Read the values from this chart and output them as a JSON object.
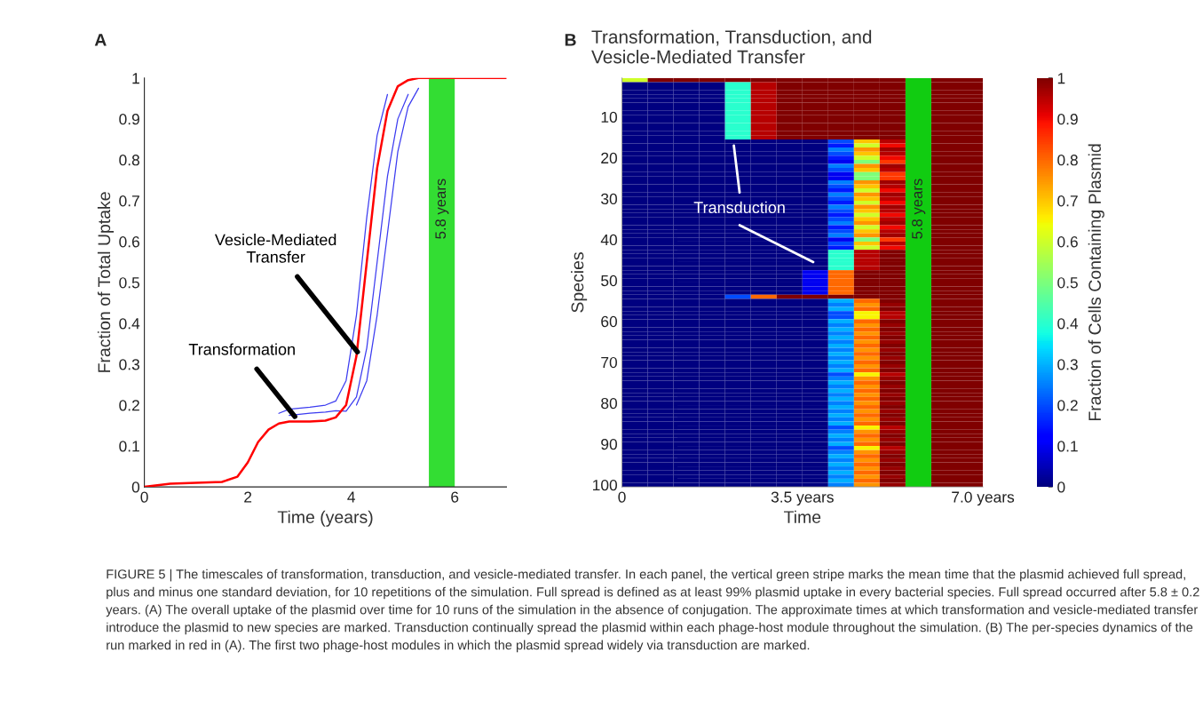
{
  "chart_data": [
    {
      "type": "line",
      "xlabel": "Time (years)",
      "ylabel": "Fraction of Total Uptake",
      "xlim": [
        0,
        7
      ],
      "xticks": [
        0,
        2,
        4,
        6
      ],
      "ylim": [
        0,
        1
      ],
      "yticks": [
        0,
        0.1,
        0.2,
        0.3,
        0.4,
        0.5,
        0.6,
        0.7,
        0.8,
        0.9,
        1
      ],
      "grid": false,
      "legend": false,
      "x": [
        0,
        0.5,
        1,
        1.5,
        1.8,
        2,
        2.2,
        2.4,
        2.6,
        2.8,
        3.2,
        3.5,
        3.7,
        3.9,
        4.1,
        4.3,
        4.5,
        4.7,
        4.9,
        5.1,
        5.3,
        5.5,
        7
      ],
      "series": [
        {
          "color": "#3c3cf0",
          "values": [
            null,
            null,
            null,
            null,
            null,
            null,
            null,
            null,
            0.18,
            0.19,
            0.195,
            0.2,
            0.21,
            0.26,
            0.42,
            0.66,
            0.86,
            0.96,
            null,
            null,
            null,
            null,
            null
          ]
        },
        {
          "color": "#3c3cf0",
          "values": [
            null,
            null,
            null,
            null,
            null,
            null,
            null,
            null,
            null,
            0.175,
            0.18,
            0.183,
            0.186,
            0.185,
            0.22,
            0.34,
            0.55,
            0.76,
            0.9,
            0.96,
            null,
            null,
            null
          ]
        },
        {
          "color": "#3c3cf0",
          "values": [
            null,
            null,
            null,
            null,
            null,
            null,
            null,
            null,
            null,
            null,
            null,
            null,
            null,
            null,
            0.2,
            0.26,
            0.42,
            0.62,
            0.82,
            0.93,
            0.975,
            null,
            null
          ]
        },
        {
          "color": "#ff0000",
          "values": [
            0,
            0.008,
            0.01,
            0.012,
            0.025,
            0.06,
            0.11,
            0.14,
            0.155,
            0.16,
            0.16,
            0.162,
            0.17,
            0.2,
            0.32,
            0.55,
            0.78,
            0.92,
            0.98,
            0.995,
            1,
            1,
            1
          ]
        }
      ],
      "bands": [
        {
          "axis": "x",
          "from": 5.5,
          "to": 6.0,
          "label": "5.8 years",
          "color": "#33dd33"
        }
      ],
      "annotations": [
        "A",
        {
          "text": "Transformation",
          "x": 2.91,
          "y": 0.172
        },
        {
          "text": "Vesicle-Mediated\nTransfer",
          "x": 4.12,
          "y": 0.33
        }
      ]
    },
    {
      "type": "heatmap",
      "title": "Transformation, Transduction, and\nVesicle-Mediated Transfer",
      "xlabel": "Time",
      "ylabel": "Species",
      "clabel": "Fraction of Cells Containing Plasmid",
      "xlim": [
        0,
        7
      ],
      "xticks": [
        0,
        {
          "value": 3.5,
          "label": "3.5 years"
        },
        {
          "value": 7.0,
          "label": "7.0 years"
        }
      ],
      "ylim": [
        100.5,
        0.5
      ],
      "yticks": [
        10,
        20,
        30,
        40,
        50,
        60,
        70,
        80,
        90,
        100
      ],
      "clim": [
        0,
        1
      ],
      "cticks": [
        0,
        0.1,
        0.2,
        0.3,
        0.4,
        0.5,
        0.6,
        0.7,
        0.8,
        0.9,
        1
      ],
      "cells": [
        [
          0.6,
          1,
          1,
          1,
          1,
          1,
          1,
          1,
          1,
          1,
          1,
          null,
          1,
          1
        ],
        [
          0,
          0,
          0,
          0,
          0.4,
          0.95,
          1,
          1,
          1,
          1,
          1,
          null,
          1,
          1
        ],
        [
          0,
          0,
          0,
          0,
          0.4,
          0.95,
          1,
          1,
          1,
          1,
          1,
          null,
          1,
          1
        ],
        [
          0,
          0,
          0,
          0,
          0.4,
          0.95,
          1,
          1,
          1,
          1,
          1,
          null,
          1,
          1
        ],
        [
          0,
          0,
          0,
          0,
          0.4,
          0.95,
          1,
          1,
          1,
          1,
          1,
          null,
          1,
          1
        ],
        [
          0,
          0,
          0,
          0,
          0.4,
          0.95,
          1,
          1,
          1,
          1,
          1,
          null,
          1,
          1
        ],
        [
          0,
          0,
          0,
          0,
          0.4,
          0.95,
          1,
          1,
          1,
          1,
          1,
          null,
          1,
          1
        ],
        [
          0,
          0,
          0,
          0,
          0.4,
          0.95,
          1,
          1,
          1,
          1,
          1,
          null,
          1,
          1
        ],
        [
          0,
          0,
          0,
          0,
          0.4,
          0.95,
          1,
          1,
          1,
          1,
          1,
          null,
          1,
          1
        ],
        [
          0,
          0,
          0,
          0,
          0.4,
          0.95,
          1,
          1,
          1,
          1,
          1,
          null,
          1,
          1
        ],
        [
          0,
          0,
          0,
          0,
          0.4,
          0.95,
          1,
          1,
          1,
          1,
          1,
          null,
          1,
          1
        ],
        [
          0,
          0,
          0,
          0,
          0.4,
          0.95,
          1,
          1,
          1,
          1,
          1,
          null,
          1,
          1
        ],
        [
          0,
          0,
          0,
          0,
          0.4,
          0.95,
          1,
          1,
          1,
          1,
          1,
          null,
          1,
          1
        ],
        [
          0,
          0,
          0,
          0,
          0.4,
          0.95,
          1,
          1,
          1,
          1,
          1,
          null,
          1,
          1
        ],
        [
          0,
          0,
          0,
          0,
          0.4,
          0.95,
          1,
          1,
          1,
          1,
          1,
          null,
          1,
          1
        ],
        [
          0,
          0,
          0,
          0,
          0,
          0,
          0,
          0,
          0.2,
          0.7,
          0.95,
          null,
          1,
          1
        ],
        [
          0,
          0,
          0,
          0,
          0,
          0,
          0,
          0,
          0.15,
          0.6,
          0.9,
          null,
          1,
          1
        ],
        [
          0,
          0,
          0,
          0,
          0,
          0,
          0,
          0,
          0.25,
          0.75,
          0.97,
          null,
          1,
          1
        ],
        [
          0,
          0,
          0,
          0,
          0,
          0,
          0,
          0,
          0.2,
          0.7,
          0.95,
          null,
          1,
          1
        ],
        [
          0,
          0,
          0,
          0,
          0,
          0,
          0,
          0,
          0.15,
          0.6,
          0.9,
          null,
          1,
          1
        ],
        [
          0,
          0,
          0,
          0,
          0,
          0,
          0,
          0,
          0.1,
          0.5,
          0.85,
          null,
          1,
          1
        ],
        [
          0,
          0,
          0,
          0,
          0,
          0,
          0,
          0,
          0.25,
          0.75,
          0.97,
          null,
          1,
          1
        ],
        [
          0,
          0,
          0,
          0,
          0,
          0,
          0,
          0,
          0.2,
          0.7,
          0.95,
          null,
          1,
          1
        ],
        [
          0,
          0,
          0,
          0,
          0,
          0,
          0,
          0,
          0.1,
          0.5,
          0.85,
          null,
          1,
          1
        ],
        [
          0,
          0,
          0,
          0,
          0,
          0,
          0,
          0,
          0.1,
          0.5,
          0.85,
          null,
          1,
          1
        ],
        [
          0,
          0,
          0,
          0,
          0,
          0,
          0,
          0,
          0.25,
          0.75,
          0.97,
          null,
          1,
          1
        ],
        [
          0,
          0,
          0,
          0,
          0,
          0,
          0,
          0,
          0.2,
          0.7,
          0.95,
          null,
          1,
          1
        ],
        [
          0,
          0,
          0,
          0,
          0,
          0,
          0,
          0,
          0.15,
          0.6,
          0.9,
          null,
          1,
          1
        ],
        [
          0,
          0,
          0,
          0,
          0,
          0,
          0,
          0,
          0.25,
          0.75,
          0.97,
          null,
          1,
          1
        ],
        [
          0,
          0,
          0,
          0,
          0,
          0,
          0,
          0,
          0.2,
          0.7,
          0.95,
          null,
          1,
          1
        ],
        [
          0,
          0,
          0,
          0,
          0,
          0,
          0,
          0,
          0.15,
          0.6,
          0.9,
          null,
          1,
          1
        ],
        [
          0,
          0,
          0,
          0,
          0,
          0,
          0,
          0,
          0.25,
          0.75,
          0.97,
          null,
          1,
          1
        ],
        [
          0,
          0,
          0,
          0,
          0,
          0,
          0,
          0,
          0.2,
          0.7,
          0.95,
          null,
          1,
          1
        ],
        [
          0,
          0,
          0,
          0,
          0,
          0,
          0,
          0,
          0.15,
          0.6,
          0.9,
          null,
          1,
          1
        ],
        [
          0,
          0,
          0,
          0,
          0,
          0,
          0,
          0,
          0.2,
          0.7,
          0.95,
          null,
          1,
          1
        ],
        [
          0,
          0,
          0,
          0,
          0,
          0,
          0,
          0,
          0.25,
          0.75,
          0.97,
          null,
          1,
          1
        ],
        [
          0,
          0,
          0,
          0,
          0,
          0,
          0,
          0,
          0.15,
          0.6,
          0.9,
          null,
          1,
          1
        ],
        [
          0,
          0,
          0,
          0,
          0,
          0,
          0,
          0,
          0.2,
          0.7,
          0.95,
          null,
          1,
          1
        ],
        [
          0,
          0,
          0,
          0,
          0,
          0,
          0,
          0,
          0.25,
          0.75,
          0.97,
          null,
          1,
          1
        ],
        [
          0,
          0,
          0,
          0,
          0,
          0,
          0,
          0,
          0.1,
          0.5,
          0.85,
          null,
          1,
          1
        ],
        [
          0,
          0,
          0,
          0,
          0,
          0,
          0,
          0,
          0.2,
          0.7,
          0.95,
          null,
          1,
          1
        ],
        [
          0,
          0,
          0,
          0,
          0,
          0,
          0,
          0,
          0.15,
          0.6,
          0.9,
          null,
          1,
          1
        ],
        [
          0,
          0,
          0,
          0,
          0,
          0,
          0,
          0,
          0.4,
          0.95,
          1,
          null,
          1,
          1
        ],
        [
          0,
          0,
          0,
          0,
          0,
          0,
          0,
          0,
          0.4,
          0.95,
          1,
          null,
          1,
          1
        ],
        [
          0,
          0,
          0,
          0,
          0,
          0,
          0,
          0,
          0.4,
          0.95,
          1,
          null,
          1,
          1
        ],
        [
          0,
          0,
          0,
          0,
          0,
          0,
          0,
          0,
          0.4,
          0.95,
          1,
          null,
          1,
          1
        ],
        [
          0,
          0,
          0,
          0,
          0,
          0,
          0,
          0,
          0.4,
          0.95,
          1,
          null,
          1,
          1
        ],
        [
          0,
          0,
          0,
          0,
          0,
          0,
          0,
          0.1,
          0.8,
          1,
          1,
          null,
          1,
          1
        ],
        [
          0,
          0,
          0,
          0,
          0,
          0,
          0,
          0.1,
          0.8,
          1,
          1,
          null,
          1,
          1
        ],
        [
          0,
          0,
          0,
          0,
          0,
          0,
          0,
          0.1,
          0.8,
          1,
          1,
          null,
          1,
          1
        ],
        [
          0,
          0,
          0,
          0,
          0,
          0,
          0,
          0.1,
          0.8,
          1,
          1,
          null,
          1,
          1
        ],
        [
          0,
          0,
          0,
          0,
          0,
          0,
          0,
          0.1,
          0.8,
          1,
          1,
          null,
          1,
          1
        ],
        [
          0,
          0,
          0,
          0,
          0,
          0,
          0,
          0.1,
          0.8,
          1,
          1,
          null,
          1,
          1
        ],
        [
          0,
          0,
          0,
          0,
          0.2,
          0.8,
          1,
          1,
          1,
          1,
          1,
          null,
          1,
          1
        ],
        [
          0,
          0,
          0,
          0,
          0,
          0,
          0,
          0,
          0.3,
          0.8,
          1,
          null,
          1,
          1
        ],
        [
          0,
          0,
          0,
          0,
          0,
          0,
          0,
          0,
          0.25,
          0.75,
          0.98,
          null,
          1,
          1
        ],
        [
          0,
          0,
          0,
          0,
          0,
          0,
          0,
          0,
          0.3,
          0.8,
          1,
          null,
          1,
          1
        ],
        [
          0,
          0,
          0,
          0,
          0,
          0,
          0,
          0,
          0.2,
          0.65,
          0.95,
          null,
          1,
          1
        ],
        [
          0,
          0,
          0,
          0,
          0,
          0,
          0,
          0,
          0.2,
          0.65,
          0.95,
          null,
          1,
          1
        ],
        [
          0,
          0,
          0,
          0,
          0,
          0,
          0,
          0,
          0.3,
          0.8,
          1,
          null,
          1,
          1
        ],
        [
          0,
          0,
          0,
          0,
          0,
          0,
          0,
          0,
          0.25,
          0.75,
          0.98,
          null,
          1,
          1
        ],
        [
          0,
          0,
          0,
          0,
          0,
          0,
          0,
          0,
          0.3,
          0.8,
          1,
          null,
          1,
          1
        ],
        [
          0,
          0,
          0,
          0,
          0,
          0,
          0,
          0,
          0.25,
          0.75,
          0.98,
          null,
          1,
          1
        ],
        [
          0,
          0,
          0,
          0,
          0,
          0,
          0,
          0,
          0.3,
          0.8,
          1,
          null,
          1,
          1
        ],
        [
          0,
          0,
          0,
          0,
          0,
          0,
          0,
          0,
          0.25,
          0.75,
          0.98,
          null,
          1,
          1
        ],
        [
          0,
          0,
          0,
          0,
          0,
          0,
          0,
          0,
          0.3,
          0.8,
          1,
          null,
          1,
          1
        ],
        [
          0,
          0,
          0,
          0,
          0,
          0,
          0,
          0,
          0.25,
          0.75,
          0.98,
          null,
          1,
          1
        ],
        [
          0,
          0,
          0,
          0,
          0,
          0,
          0,
          0,
          0.3,
          0.8,
          1,
          null,
          1,
          1
        ],
        [
          0,
          0,
          0,
          0,
          0,
          0,
          0,
          0,
          0.25,
          0.75,
          0.98,
          null,
          1,
          1
        ],
        [
          0,
          0,
          0,
          0,
          0,
          0,
          0,
          0,
          0.3,
          0.8,
          1,
          null,
          1,
          1
        ],
        [
          0,
          0,
          0,
          0,
          0,
          0,
          0,
          0,
          0.25,
          0.75,
          0.98,
          null,
          1,
          1
        ],
        [
          0,
          0,
          0,
          0,
          0,
          0,
          0,
          0,
          0.3,
          0.8,
          1,
          null,
          1,
          1
        ],
        [
          0,
          0,
          0,
          0,
          0,
          0,
          0,
          0,
          0.2,
          0.65,
          0.95,
          null,
          1,
          1
        ],
        [
          0,
          0,
          0,
          0,
          0,
          0,
          0,
          0,
          0.25,
          0.75,
          0.98,
          null,
          1,
          1
        ],
        [
          0,
          0,
          0,
          0,
          0,
          0,
          0,
          0,
          0.3,
          0.8,
          1,
          null,
          1,
          1
        ],
        [
          0,
          0,
          0,
          0,
          0,
          0,
          0,
          0,
          0.25,
          0.75,
          0.98,
          null,
          1,
          1
        ],
        [
          0,
          0,
          0,
          0,
          0,
          0,
          0,
          0,
          0.3,
          0.8,
          1,
          null,
          1,
          1
        ],
        [
          0,
          0,
          0,
          0,
          0,
          0,
          0,
          0,
          0.25,
          0.75,
          0.98,
          null,
          1,
          1
        ],
        [
          0,
          0,
          0,
          0,
          0,
          0,
          0,
          0,
          0.3,
          0.8,
          1,
          null,
          1,
          1
        ],
        [
          0,
          0,
          0,
          0,
          0,
          0,
          0,
          0,
          0.25,
          0.75,
          0.98,
          null,
          1,
          1
        ],
        [
          0,
          0,
          0,
          0,
          0,
          0,
          0,
          0,
          0.3,
          0.8,
          1,
          null,
          1,
          1
        ],
        [
          0,
          0,
          0,
          0,
          0,
          0,
          0,
          0,
          0.25,
          0.75,
          0.98,
          null,
          1,
          1
        ],
        [
          0,
          0,
          0,
          0,
          0,
          0,
          0,
          0,
          0.3,
          0.8,
          1,
          null,
          1,
          1
        ],
        [
          0,
          0,
          0,
          0,
          0,
          0,
          0,
          0,
          0.25,
          0.75,
          0.98,
          null,
          1,
          1
        ],
        [
          0,
          0,
          0,
          0,
          0,
          0,
          0,
          0,
          0.3,
          0.8,
          1,
          null,
          1,
          1
        ],
        [
          0,
          0,
          0,
          0,
          0,
          0,
          0,
          0,
          0.2,
          0.65,
          0.95,
          null,
          1,
          1
        ],
        [
          0,
          0,
          0,
          0,
          0,
          0,
          0,
          0,
          0.25,
          0.75,
          0.98,
          null,
          1,
          1
        ],
        [
          0,
          0,
          0,
          0,
          0,
          0,
          0,
          0,
          0.3,
          0.8,
          1,
          null,
          1,
          1
        ],
        [
          0,
          0,
          0,
          0,
          0,
          0,
          0,
          0,
          0.25,
          0.75,
          0.98,
          null,
          1,
          1
        ],
        [
          0,
          0,
          0,
          0,
          0,
          0,
          0,
          0,
          0.3,
          0.8,
          1,
          null,
          1,
          1
        ],
        [
          0,
          0,
          0,
          0,
          0,
          0,
          0,
          0,
          0.2,
          0.65,
          0.95,
          null,
          1,
          1
        ],
        [
          0,
          0,
          0,
          0,
          0,
          0,
          0,
          0,
          0.25,
          0.75,
          0.98,
          null,
          1,
          1
        ],
        [
          0,
          0,
          0,
          0,
          0,
          0,
          0,
          0,
          0.3,
          0.8,
          1,
          null,
          1,
          1
        ],
        [
          0,
          0,
          0,
          0,
          0,
          0,
          0,
          0,
          0.25,
          0.75,
          0.98,
          null,
          1,
          1
        ],
        [
          0,
          0,
          0,
          0,
          0,
          0,
          0,
          0,
          0.3,
          0.8,
          1,
          null,
          1,
          1
        ],
        [
          0,
          0,
          0,
          0,
          0,
          0,
          0,
          0,
          0.25,
          0.75,
          0.98,
          null,
          1,
          1
        ],
        [
          0,
          0,
          0,
          0,
          0,
          0,
          0,
          0,
          0.3,
          0.8,
          1,
          null,
          1,
          1
        ],
        [
          0,
          0,
          0,
          0,
          0,
          0,
          0,
          0,
          0.25,
          0.75,
          0.98,
          null,
          1,
          1
        ],
        [
          0,
          0,
          0,
          0,
          0,
          0,
          0,
          0,
          0.3,
          0.8,
          1,
          null,
          1,
          1
        ],
        [
          0,
          0,
          0,
          0,
          0,
          0,
          0,
          0,
          0.25,
          0.75,
          0.98,
          null,
          1,
          1
        ]
      ],
      "bands": [
        {
          "axis": "x",
          "from": 5.5,
          "to": 6.0,
          "label": "5.8 years",
          "color": "#11cc11"
        }
      ],
      "annotations": [
        "B",
        "Transduction",
        "FIGURE 5 | The timescales of transformation, transduction, and vesicle-mediated transfer. In each panel, the vertical green stripe marks the mean time that the plasmid achieved full spread, plus and minus one standard deviation, for 10 repetitions of the simulation. Full spread is defined as at least 99% plasmid uptake in every bacterial species. Full spread occurred after 5.8 ± 0.2 years. (A) The overall uptake of the plasmid over time for 10 runs of the simulation in the absence of conjugation. The approximate times at which transformation and vesicle-mediated transfer introduce the plasmid to new species are marked. Transduction continually spread the plasmid within each phage-host module throughout the simulation. (B) The per-species dynamics of the run marked in red in (A). The first two phage-host modules in which the plasmid spread widely via transduction are marked."
      ]
    }
  ]
}
